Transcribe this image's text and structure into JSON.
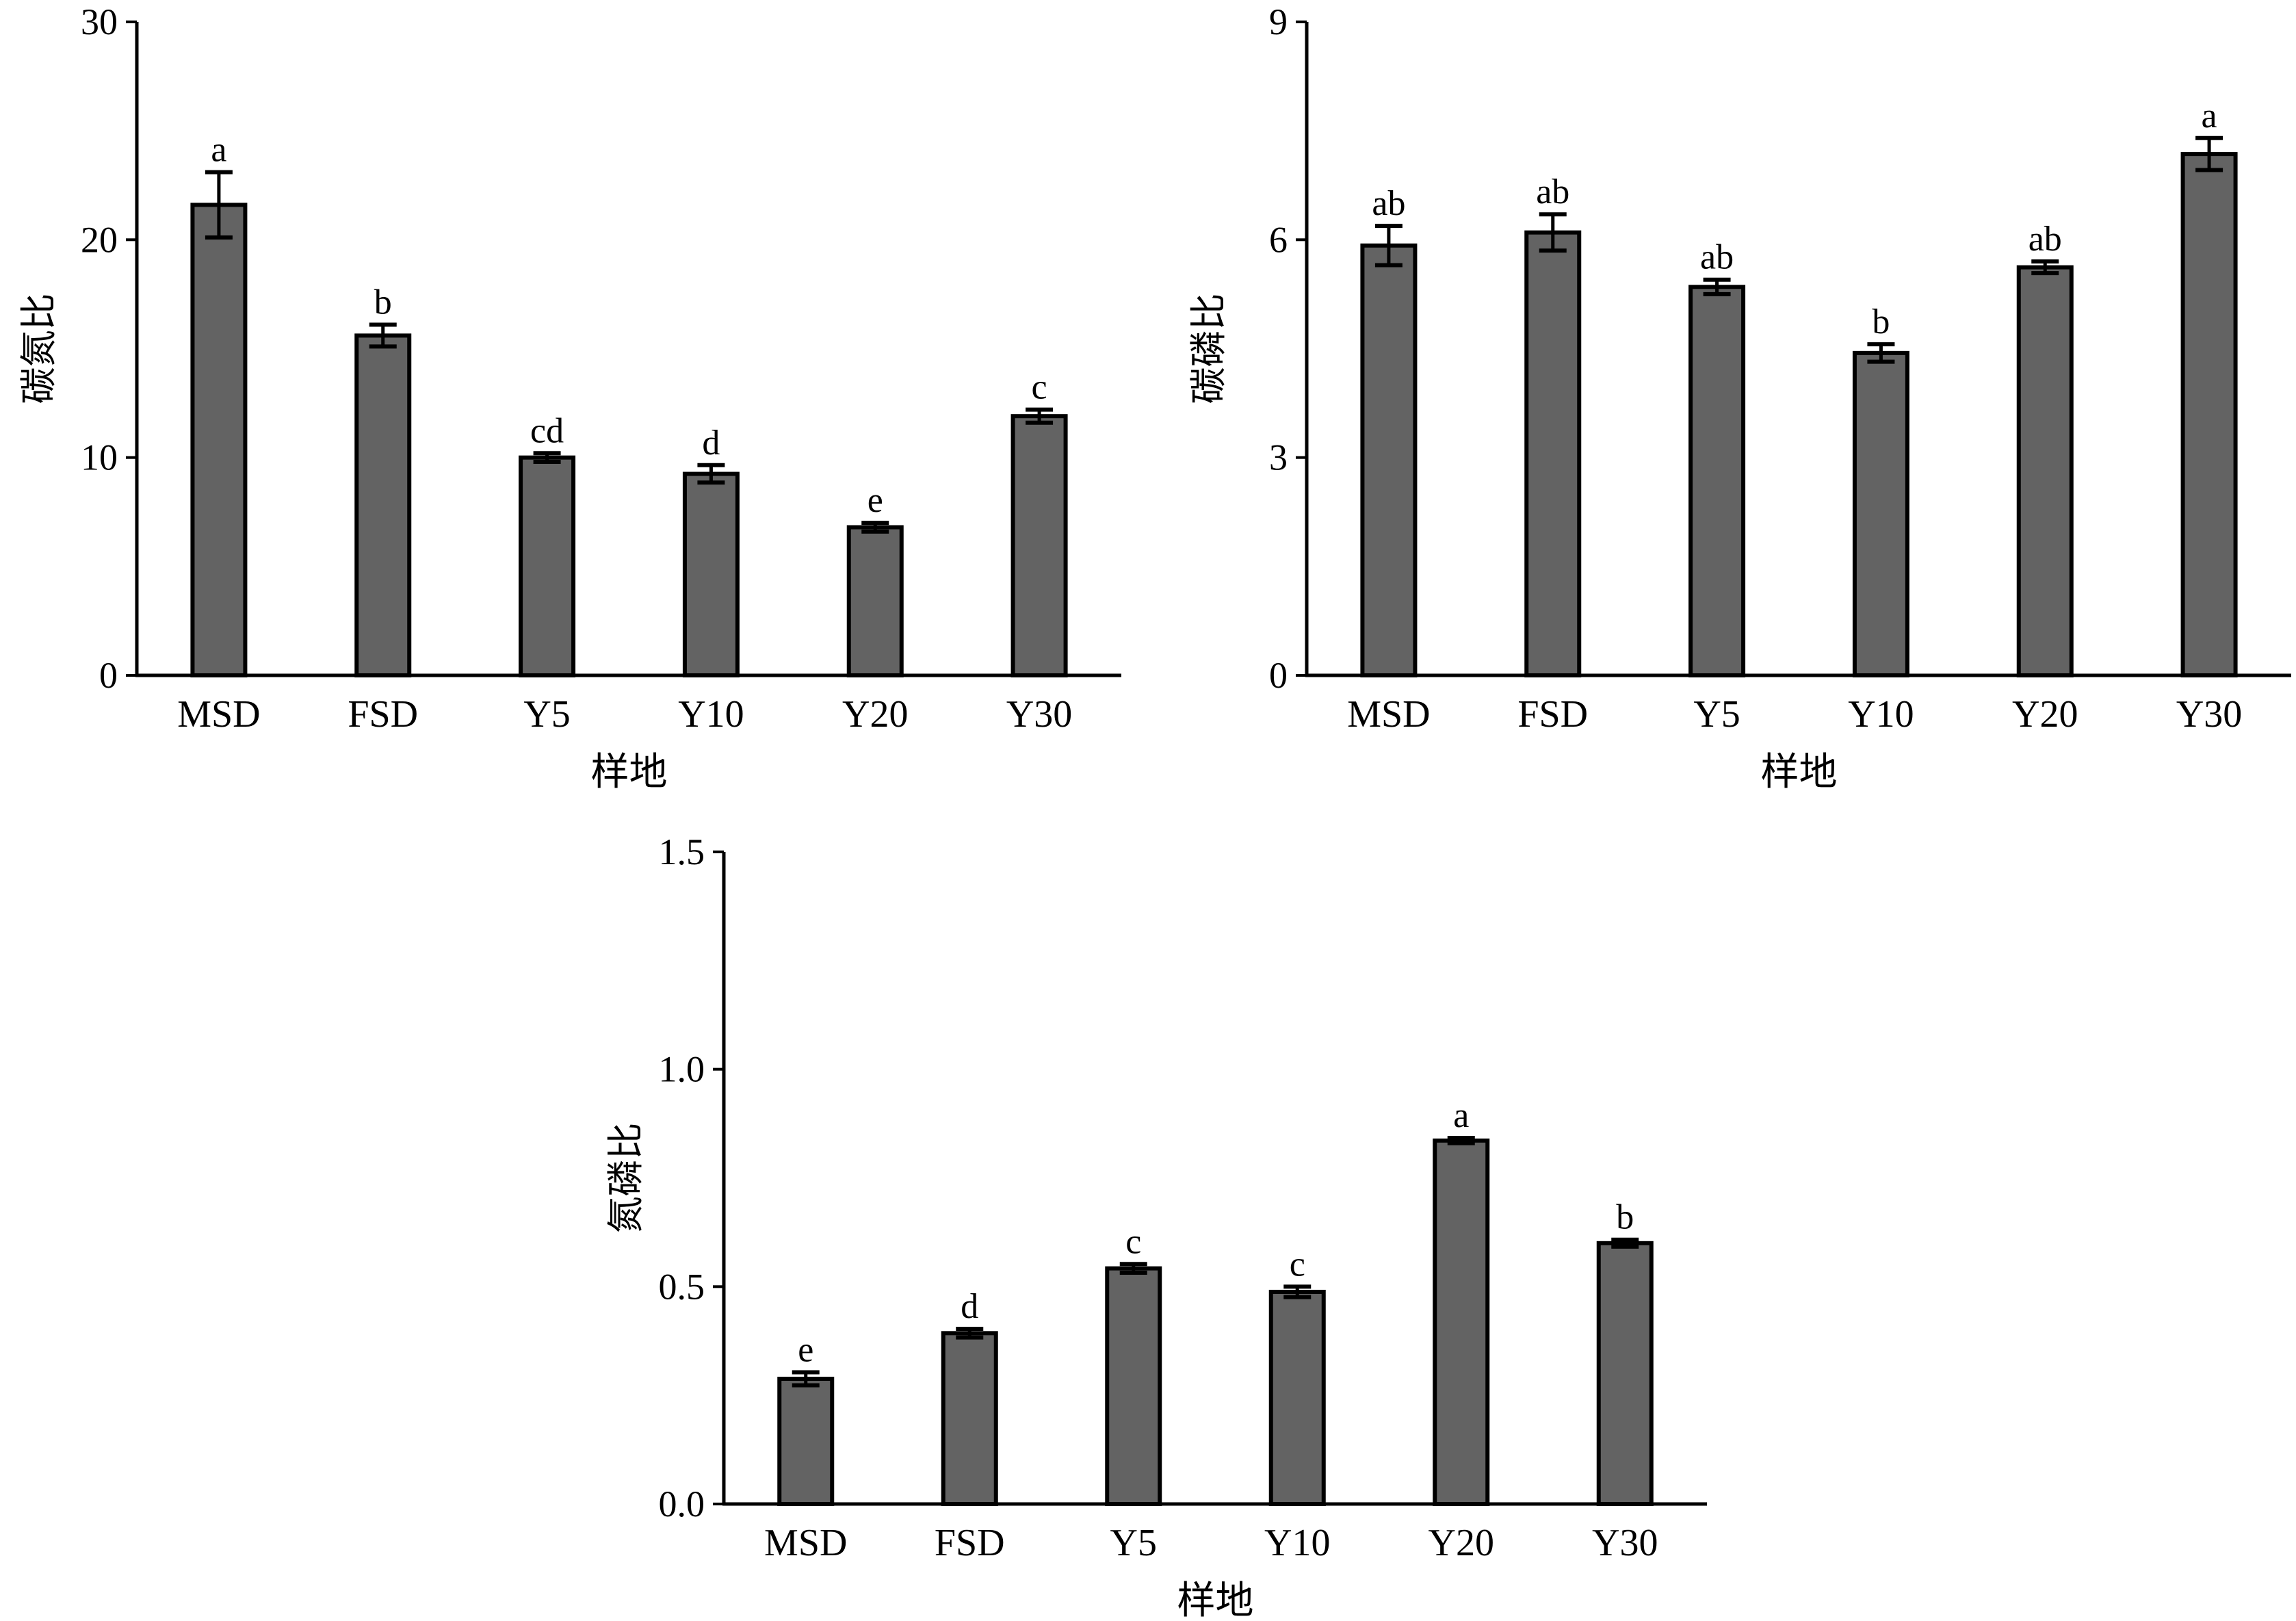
{
  "chart_data": [
    {
      "type": "bar",
      "title": "",
      "xlabel": "样地",
      "ylabel": "碳氮比",
      "categories": [
        "MSD",
        "FSD",
        "Y5",
        "Y10",
        "Y20",
        "Y30"
      ],
      "values": [
        21.6,
        15.6,
        10.0,
        9.25,
        6.8,
        11.9
      ],
      "errors": [
        1.5,
        0.5,
        0.2,
        0.4,
        0.2,
        0.3
      ],
      "letters": [
        "a",
        "b",
        "cd",
        "d",
        "e",
        "c"
      ],
      "ylim": [
        0,
        30
      ],
      "yticks": [
        "0",
        "10",
        "20",
        "30"
      ],
      "ytick_values": [
        0,
        10,
        20,
        30
      ],
      "grid": false
    },
    {
      "type": "bar",
      "title": "",
      "xlabel": "样地",
      "ylabel": "碳磷比",
      "categories": [
        "MSD",
        "FSD",
        "Y5",
        "Y10",
        "Y20",
        "Y30"
      ],
      "values": [
        5.92,
        6.1,
        5.35,
        4.44,
        5.62,
        7.18
      ],
      "errors": [
        0.27,
        0.25,
        0.1,
        0.12,
        0.08,
        0.22
      ],
      "letters": [
        "ab",
        "ab",
        "ab",
        "b",
        "ab",
        "a"
      ],
      "ylim": [
        0,
        9
      ],
      "yticks": [
        "0",
        "3",
        "6",
        "9"
      ],
      "ytick_values": [
        0,
        3,
        6,
        9
      ],
      "grid": false
    },
    {
      "type": "bar",
      "title": "",
      "xlabel": "样地",
      "ylabel": "氮磷比",
      "categories": [
        "MSD",
        "FSD",
        "Y5",
        "Y10",
        "Y20",
        "Y30"
      ],
      "values": [
        0.288,
        0.393,
        0.542,
        0.488,
        0.836,
        0.6
      ],
      "errors": [
        0.015,
        0.01,
        0.01,
        0.012,
        0.006,
        0.008
      ],
      "letters": [
        "e",
        "d",
        "c",
        "c",
        "a",
        "b"
      ],
      "ylim": [
        0,
        1.5
      ],
      "yticks": [
        "0.0",
        "0.5",
        "1.0",
        "1.5"
      ],
      "ytick_values": [
        0,
        0.5,
        1.0,
        1.5
      ],
      "grid": false
    }
  ],
  "colors": {
    "bar": "#636363",
    "edge": "#000000"
  }
}
